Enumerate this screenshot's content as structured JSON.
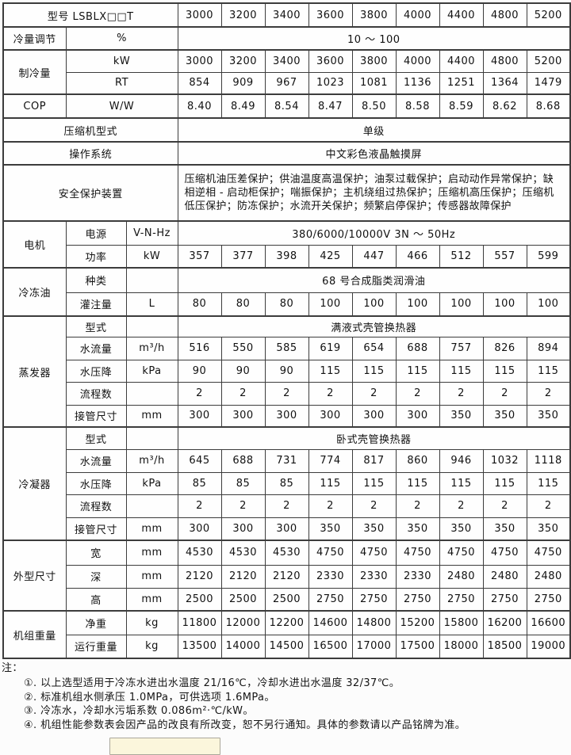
{
  "page": {
    "background_color": "#fcfcfc",
    "border_color": "#3c3c3c",
    "text_color": "#111111",
    "partial_button_color": "#fbf6dc"
  },
  "table": {
    "rows": [
      {
        "cells": [
          {
            "t": "型号 LSBLX□□T",
            "c": 3
          },
          {
            "t": "3000"
          },
          {
            "t": "3200"
          },
          {
            "t": "3400"
          },
          {
            "t": "3600"
          },
          {
            "t": "3800"
          },
          {
            "t": "4000"
          },
          {
            "t": "4400"
          },
          {
            "t": "4800"
          },
          {
            "t": "5200"
          }
        ]
      },
      {
        "s": true,
        "cells": [
          {
            "t": "冷量调节"
          },
          {
            "t": "%",
            "c": 2
          },
          {
            "t": "10 ～ 100",
            "c": 9
          }
        ]
      },
      {
        "s": true,
        "cells": [
          {
            "t": "制冷量",
            "r": 2
          },
          {
            "t": "kW",
            "c": 2
          },
          {
            "t": "3000"
          },
          {
            "t": "3200"
          },
          {
            "t": "3400"
          },
          {
            "t": "3600"
          },
          {
            "t": "3800"
          },
          {
            "t": "4000"
          },
          {
            "t": "4400"
          },
          {
            "t": "4800"
          },
          {
            "t": "5200"
          }
        ]
      },
      {
        "cells": [
          {
            "t": "RT",
            "c": 2
          },
          {
            "t": "854"
          },
          {
            "t": "909"
          },
          {
            "t": "967"
          },
          {
            "t": "1023"
          },
          {
            "t": "1081"
          },
          {
            "t": "1136"
          },
          {
            "t": "1251"
          },
          {
            "t": "1364"
          },
          {
            "t": "1479"
          }
        ]
      },
      {
        "s": true,
        "cells": [
          {
            "t": "COP"
          },
          {
            "t": "W/W",
            "c": 2
          },
          {
            "t": "8.40"
          },
          {
            "t": "8.49"
          },
          {
            "t": "8.54"
          },
          {
            "t": "8.47"
          },
          {
            "t": "8.50"
          },
          {
            "t": "8.58"
          },
          {
            "t": "8.59"
          },
          {
            "t": "8.62"
          },
          {
            "t": "8.68"
          }
        ]
      },
      {
        "s": true,
        "cells": [
          {
            "t": "压缩机型式",
            "c": 3
          },
          {
            "t": "单级",
            "c": 9
          }
        ]
      },
      {
        "s": true,
        "cells": [
          {
            "t": "操作系统",
            "c": 3
          },
          {
            "t": "中文彩色液晶触摸屏",
            "c": 9
          }
        ]
      },
      {
        "s": true,
        "cells": [
          {
            "t": "安全保护装置",
            "c": 3
          },
          {
            "t": "压缩机油压差保护；供油温度高温保护；油泵过载保护；启动动作异常保护；缺相逆相 - 启动柜保护；喘振保护；主机绕组过热保护；压缩机高压保护；压缩机低压保护；防冻保护；水流开关保护；频繁启停保护；传感器故障保护",
            "c": 9,
            "cls": "left"
          }
        ]
      },
      {
        "s": true,
        "cells": [
          {
            "t": "电机",
            "r": 2
          },
          {
            "t": "电源"
          },
          {
            "t": "V-N-Hz"
          },
          {
            "t": "380/6000/10000V 3N ～ 50Hz",
            "c": 9
          }
        ]
      },
      {
        "cells": [
          {
            "t": "功率"
          },
          {
            "t": "kW"
          },
          {
            "t": "357"
          },
          {
            "t": "377"
          },
          {
            "t": "398"
          },
          {
            "t": "425"
          },
          {
            "t": "447"
          },
          {
            "t": "466"
          },
          {
            "t": "512"
          },
          {
            "t": "557"
          },
          {
            "t": "599"
          }
        ]
      },
      {
        "s": true,
        "cells": [
          {
            "t": "冷冻油",
            "r": 2
          },
          {
            "t": "种类"
          },
          {
            "t": ""
          },
          {
            "t": "68 号合成脂类润滑油",
            "c": 9
          }
        ]
      },
      {
        "cells": [
          {
            "t": "灌注量"
          },
          {
            "t": "L"
          },
          {
            "t": "80"
          },
          {
            "t": "80"
          },
          {
            "t": "80"
          },
          {
            "t": "100"
          },
          {
            "t": "100"
          },
          {
            "t": "100"
          },
          {
            "t": "100"
          },
          {
            "t": "100"
          },
          {
            "t": "100"
          }
        ]
      },
      {
        "s": true,
        "cells": [
          {
            "t": "蒸发器",
            "r": 5
          },
          {
            "t": "型式"
          },
          {
            "t": ""
          },
          {
            "t": "满液式壳管换热器",
            "c": 9
          }
        ]
      },
      {
        "cells": [
          {
            "t": "水流量"
          },
          {
            "t": "m³/h"
          },
          {
            "t": "516"
          },
          {
            "t": "550"
          },
          {
            "t": "585"
          },
          {
            "t": "619"
          },
          {
            "t": "654"
          },
          {
            "t": "688"
          },
          {
            "t": "757"
          },
          {
            "t": "826"
          },
          {
            "t": "894"
          }
        ]
      },
      {
        "cells": [
          {
            "t": "水压降"
          },
          {
            "t": "kPa"
          },
          {
            "t": "90"
          },
          {
            "t": "90"
          },
          {
            "t": "90"
          },
          {
            "t": "115"
          },
          {
            "t": "115"
          },
          {
            "t": "115"
          },
          {
            "t": "115"
          },
          {
            "t": "115"
          },
          {
            "t": "115"
          }
        ]
      },
      {
        "cells": [
          {
            "t": "流程数"
          },
          {
            "t": ""
          },
          {
            "t": "2"
          },
          {
            "t": "2"
          },
          {
            "t": "2"
          },
          {
            "t": "2"
          },
          {
            "t": "2"
          },
          {
            "t": "2"
          },
          {
            "t": "2"
          },
          {
            "t": "2"
          },
          {
            "t": "2"
          }
        ]
      },
      {
        "cells": [
          {
            "t": "接管尺寸"
          },
          {
            "t": "mm"
          },
          {
            "t": "300"
          },
          {
            "t": "300"
          },
          {
            "t": "300"
          },
          {
            "t": "300"
          },
          {
            "t": "300"
          },
          {
            "t": "300"
          },
          {
            "t": "350"
          },
          {
            "t": "350"
          },
          {
            "t": "350"
          }
        ]
      },
      {
        "s": true,
        "cells": [
          {
            "t": "冷凝器",
            "r": 5
          },
          {
            "t": "型式"
          },
          {
            "t": ""
          },
          {
            "t": "卧式壳管换热器",
            "c": 9
          }
        ]
      },
      {
        "cells": [
          {
            "t": "水流量"
          },
          {
            "t": "m³/h"
          },
          {
            "t": "645"
          },
          {
            "t": "688"
          },
          {
            "t": "731"
          },
          {
            "t": "774"
          },
          {
            "t": "817"
          },
          {
            "t": "860"
          },
          {
            "t": "946"
          },
          {
            "t": "1032"
          },
          {
            "t": "1118"
          }
        ]
      },
      {
        "cells": [
          {
            "t": "水压降"
          },
          {
            "t": "kPa"
          },
          {
            "t": "85"
          },
          {
            "t": "85"
          },
          {
            "t": "85"
          },
          {
            "t": "115"
          },
          {
            "t": "115"
          },
          {
            "t": "115"
          },
          {
            "t": "115"
          },
          {
            "t": "115"
          },
          {
            "t": "115"
          }
        ]
      },
      {
        "cells": [
          {
            "t": "流程数"
          },
          {
            "t": ""
          },
          {
            "t": "2"
          },
          {
            "t": "2"
          },
          {
            "t": "2"
          },
          {
            "t": "2"
          },
          {
            "t": "2"
          },
          {
            "t": "2"
          },
          {
            "t": "2"
          },
          {
            "t": "2"
          },
          {
            "t": "2"
          }
        ]
      },
      {
        "cells": [
          {
            "t": "接管尺寸"
          },
          {
            "t": "mm"
          },
          {
            "t": "300"
          },
          {
            "t": "300"
          },
          {
            "t": "300"
          },
          {
            "t": "350"
          },
          {
            "t": "350"
          },
          {
            "t": "350"
          },
          {
            "t": "350"
          },
          {
            "t": "350"
          },
          {
            "t": "350"
          }
        ]
      },
      {
        "s": true,
        "cells": [
          {
            "t": "外型尺寸",
            "r": 3
          },
          {
            "t": "宽"
          },
          {
            "t": "mm"
          },
          {
            "t": "4530"
          },
          {
            "t": "4530"
          },
          {
            "t": "4530"
          },
          {
            "t": "4750"
          },
          {
            "t": "4750"
          },
          {
            "t": "4750"
          },
          {
            "t": "4750"
          },
          {
            "t": "4750"
          },
          {
            "t": "4750"
          }
        ]
      },
      {
        "cells": [
          {
            "t": "深"
          },
          {
            "t": "mm"
          },
          {
            "t": "2120"
          },
          {
            "t": "2120"
          },
          {
            "t": "2120"
          },
          {
            "t": "2330"
          },
          {
            "t": "2330"
          },
          {
            "t": "2330"
          },
          {
            "t": "2480"
          },
          {
            "t": "2480"
          },
          {
            "t": "2480"
          }
        ]
      },
      {
        "cells": [
          {
            "t": "高"
          },
          {
            "t": "mm"
          },
          {
            "t": "2500"
          },
          {
            "t": "2500"
          },
          {
            "t": "2500"
          },
          {
            "t": "2750"
          },
          {
            "t": "2750"
          },
          {
            "t": "2750"
          },
          {
            "t": "2750"
          },
          {
            "t": "2750"
          },
          {
            "t": "2750"
          }
        ]
      },
      {
        "s": true,
        "cells": [
          {
            "t": "机组重量",
            "r": 2
          },
          {
            "t": "净重"
          },
          {
            "t": "kg"
          },
          {
            "t": "11800"
          },
          {
            "t": "12000"
          },
          {
            "t": "12200"
          },
          {
            "t": "14600"
          },
          {
            "t": "14800"
          },
          {
            "t": "15200"
          },
          {
            "t": "15800"
          },
          {
            "t": "16200"
          },
          {
            "t": "16600"
          }
        ]
      },
      {
        "cells": [
          {
            "t": "运行重量"
          },
          {
            "t": "kg"
          },
          {
            "t": "13500"
          },
          {
            "t": "14000"
          },
          {
            "t": "14500"
          },
          {
            "t": "16500"
          },
          {
            "t": "17000"
          },
          {
            "t": "17500"
          },
          {
            "t": "18000"
          },
          {
            "t": "18500"
          },
          {
            "t": "19000"
          }
        ]
      }
    ]
  },
  "notes": {
    "title": "注：",
    "items": [
      "①. 以上选型适用于冷冻水进出水温度 21/16℃，冷却水进出水温度 32/37℃。",
      "②. 标准机组水侧承压 1.0MPa，可供选项 1.6MPa。",
      "③. 冷冻水，冷却水污垢系数 0.086m²·℃/kW。",
      "④. 机组性能参数表会因产品的改良有所改变，恕不另行通知。具体的参数请以产品铭牌为准。"
    ]
  }
}
